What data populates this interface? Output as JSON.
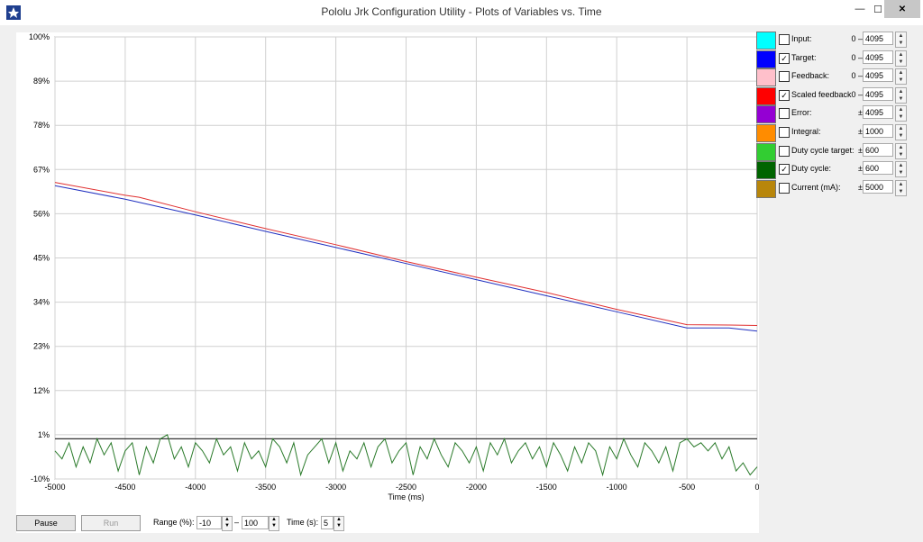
{
  "window": {
    "title": "Pololu Jrk Configuration Utility - Plots of Variables vs. Time",
    "minimize_glyph": "—",
    "maximize_glyph": "☐",
    "close_glyph": "✕"
  },
  "legend": {
    "items": [
      {
        "label": "Input:",
        "color": "#00ffff",
        "checked": false,
        "range": "0 –",
        "value": "4095"
      },
      {
        "label": "Target:",
        "color": "#0000ff",
        "checked": true,
        "range": "0 –",
        "value": "4095"
      },
      {
        "label": "Feedback:",
        "color": "#ffc0cb",
        "checked": false,
        "range": "0 –",
        "value": "4095"
      },
      {
        "label": "Scaled feedback",
        "color": "#ff0000",
        "checked": true,
        "range": "0 –",
        "value": "4095"
      },
      {
        "label": "Error:",
        "color": "#9400d3",
        "checked": false,
        "range": "±",
        "value": "4095"
      },
      {
        "label": "Integral:",
        "color": "#ff8c00",
        "checked": false,
        "range": "±",
        "value": "1000"
      },
      {
        "label": "Duty cycle target:",
        "color": "#32cd32",
        "checked": false,
        "range": "±",
        "value": "600"
      },
      {
        "label": "Duty cycle:",
        "color": "#006400",
        "checked": true,
        "range": "±",
        "value": "600"
      },
      {
        "label": "Current (mA):",
        "color": "#b8860b",
        "checked": false,
        "range": "±",
        "value": "5000"
      }
    ]
  },
  "controls": {
    "pause_label": "Pause",
    "run_label": "Run",
    "range_label": "Range (%):",
    "range_min": "-10",
    "range_dash": "–",
    "range_max": "100",
    "time_label": "Time (s):",
    "time_value": "5"
  },
  "chart_data": {
    "type": "line",
    "xlabel": "Time (ms)",
    "ylabel": "",
    "xlim": [
      -5000,
      0
    ],
    "ylim": [
      -10,
      100
    ],
    "grid": true,
    "x_ticks": [
      "-5000",
      "-4500",
      "-4000",
      "-3500",
      "-3000",
      "-2500",
      "-2000",
      "-1500",
      "-1000",
      "-500",
      "0"
    ],
    "y_ticks": [
      "100%",
      "89%",
      "78%",
      "67%",
      "56%",
      "45%",
      "34%",
      "23%",
      "12%",
      "1%",
      "-10%"
    ],
    "series": [
      {
        "name": "Target",
        "color": "#2030c0",
        "x": [
          -5000,
          -4500,
          -4000,
          -3500,
          -3000,
          -2500,
          -2000,
          -1500,
          -1000,
          -500,
          -200,
          0
        ],
        "y": [
          63,
          59.6,
          55.7,
          51.6,
          47.6,
          43.6,
          39.6,
          35.6,
          31.6,
          27.6,
          27.6,
          26.8
        ]
      },
      {
        "name": "Scaled feedback",
        "color": "#e03030",
        "x": [
          -5000,
          -4500,
          -4400,
          -4000,
          -3500,
          -3000,
          -2500,
          -2000,
          -1500,
          -1000,
          -500,
          -200,
          0
        ],
        "y": [
          63.8,
          60.6,
          60.1,
          56.5,
          52.3,
          48.3,
          44.1,
          40.2,
          36.4,
          32.2,
          28.4,
          28.3,
          28.2
        ]
      },
      {
        "name": "Duty cycle",
        "color": "#2a7a2a",
        "x": [
          -5000,
          -4950,
          -4900,
          -4850,
          -4800,
          -4750,
          -4700,
          -4650,
          -4600,
          -4550,
          -4500,
          -4450,
          -4400,
          -4350,
          -4300,
          -4250,
          -4200,
          -4150,
          -4100,
          -4050,
          -4000,
          -3950,
          -3900,
          -3850,
          -3800,
          -3750,
          -3700,
          -3650,
          -3600,
          -3550,
          -3500,
          -3450,
          -3400,
          -3350,
          -3300,
          -3250,
          -3200,
          -3150,
          -3100,
          -3050,
          -3000,
          -2950,
          -2900,
          -2850,
          -2800,
          -2750,
          -2700,
          -2650,
          -2600,
          -2550,
          -2500,
          -2450,
          -2400,
          -2350,
          -2300,
          -2250,
          -2200,
          -2150,
          -2100,
          -2050,
          -2000,
          -1950,
          -1900,
          -1850,
          -1800,
          -1750,
          -1700,
          -1650,
          -1600,
          -1550,
          -1500,
          -1450,
          -1400,
          -1350,
          -1300,
          -1250,
          -1200,
          -1150,
          -1100,
          -1050,
          -1000,
          -950,
          -900,
          -850,
          -800,
          -750,
          -700,
          -650,
          -600,
          -550,
          -500,
          -450,
          -400,
          -350,
          -300,
          -250,
          -200,
          -150,
          -100,
          -50,
          0
        ],
        "y": [
          -3,
          -5,
          -1,
          -7,
          -2,
          -6,
          0,
          -4,
          -1,
          -8,
          -3,
          -1,
          -9,
          -2,
          -6,
          0,
          1,
          -5,
          -2,
          -7,
          -1,
          -3,
          -6,
          0,
          -4,
          -2,
          -8,
          -1,
          -5,
          -3,
          -7,
          0,
          -2,
          -6,
          -1,
          -9,
          -4,
          -2,
          0,
          -6,
          -1,
          -8,
          -3,
          -5,
          -1,
          -7,
          -2,
          0,
          -6,
          -3,
          -1,
          -9,
          -2,
          -5,
          0,
          -4,
          -7,
          -1,
          -3,
          -6,
          -2,
          -8,
          -1,
          -4,
          0,
          -6,
          -3,
          -1,
          -5,
          -2,
          -7,
          -1,
          -4,
          -8,
          -2,
          -6,
          -1,
          -3,
          -9,
          -2,
          -5,
          0,
          -4,
          -7,
          -1,
          -3,
          -6,
          -2,
          -8,
          -1,
          0,
          -2,
          -1,
          -3,
          -1,
          -5,
          -2,
          -8,
          -6,
          -9,
          -7
        ]
      }
    ]
  }
}
